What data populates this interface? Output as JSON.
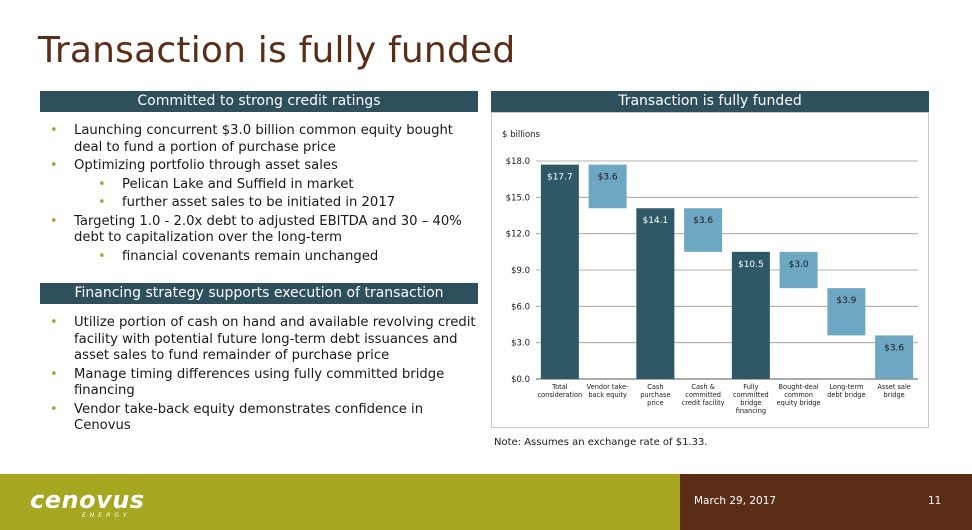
{
  "slide": {
    "title": "Transaction is fully funded",
    "date": "March 29, 2017",
    "page_number": "11"
  },
  "logo": {
    "name": "cenovus",
    "sub": "ENERGY"
  },
  "left_top": {
    "header": "Committed to strong credit ratings",
    "bullets": [
      {
        "level": 1,
        "text": "Launching concurrent $3.0 billion common equity bought deal to fund a portion of purchase price"
      },
      {
        "level": 1,
        "text": "Optimizing portfolio through asset sales"
      },
      {
        "level": 2,
        "text": "Pelican Lake and Suffield in market"
      },
      {
        "level": 2,
        "text": "further asset sales to be initiated in 2017"
      },
      {
        "level": 1,
        "text": "Targeting 1.0 - 2.0x debt to adjusted EBITDA and 30 – 40% debt to capitalization over the long-term"
      },
      {
        "level": 2,
        "text": "financial covenants remain unchanged"
      }
    ]
  },
  "left_bottom": {
    "header": "Financing strategy supports execution of transaction",
    "bullets": [
      {
        "level": 1,
        "text": "Utilize portion of cash on hand and available revolving credit facility with potential future long-term debt issuances and asset sales to fund remainder of purchase price"
      },
      {
        "level": 1,
        "text": "Manage timing differences using fully committed bridge financing"
      },
      {
        "level": 1,
        "text": "Vendor take-back equity demonstrates confidence in Cenovus"
      }
    ]
  },
  "chart_panel": {
    "header": "Transaction is fully funded",
    "note": "Note: Assumes an exchange rate of $1.33."
  },
  "chart_data": {
    "type": "bar",
    "subtype": "waterfall",
    "ylabel": "$ billions",
    "ylim": [
      0,
      18
    ],
    "yticks": [
      "$0.0",
      "$3.0",
      "$6.0",
      "$9.0",
      "$12.0",
      "$15.0",
      "$18.0"
    ],
    "ytick_values": [
      0,
      3,
      6,
      9,
      12,
      15,
      18
    ],
    "grid": true,
    "colors": {
      "total": "#2e5865",
      "step": "#6ea7c2",
      "grid": "#999999"
    },
    "bars": [
      {
        "category": [
          "Total",
          "consideration"
        ],
        "kind": "total",
        "base": 0,
        "value": 17.7,
        "label": "$17.7"
      },
      {
        "category": [
          "Vendor take-",
          "back equity"
        ],
        "kind": "step",
        "base": 14.1,
        "value": 3.6,
        "label": "$3.6"
      },
      {
        "category": [
          "Cash",
          "purchase",
          "price"
        ],
        "kind": "total",
        "base": 0,
        "value": 14.1,
        "label": "$14.1"
      },
      {
        "category": [
          "Cash &",
          "committed",
          "credit facility"
        ],
        "kind": "step",
        "base": 10.5,
        "value": 3.6,
        "label": "$3.6"
      },
      {
        "category": [
          "Fully",
          "committed",
          "bridge",
          "financing"
        ],
        "kind": "total",
        "base": 0,
        "value": 10.5,
        "label": "$10.5"
      },
      {
        "category": [
          "Bought-deal",
          "common",
          "equity bridge"
        ],
        "kind": "step",
        "base": 7.5,
        "value": 3.0,
        "label": "$3.0"
      },
      {
        "category": [
          "Long-term",
          "debt bridge"
        ],
        "kind": "step",
        "base": 3.6,
        "value": 3.9,
        "label": "$3.9"
      },
      {
        "category": [
          "Asset sale",
          "bridge"
        ],
        "kind": "step",
        "base": 0,
        "value": 3.6,
        "label": "$3.6"
      }
    ]
  }
}
